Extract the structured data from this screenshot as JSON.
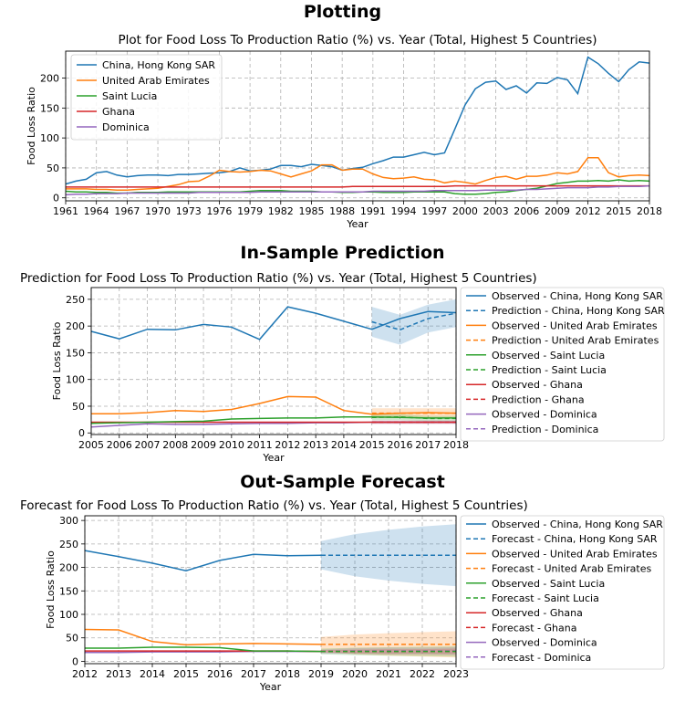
{
  "sections": [
    {
      "heading": "Plotting"
    },
    {
      "heading": "In-Sample Prediction"
    },
    {
      "heading": "Out-Sample Forecast"
    }
  ],
  "colors": {
    "china": "#1f77b4",
    "uae": "#ff7f0e",
    "saint_lucia": "#2ca02c",
    "ghana": "#d62728",
    "dominica": "#9467bd"
  },
  "chart_data": [
    {
      "type": "line",
      "title": "Plot for Food Loss To Production Ratio (%) vs. Year (Total, Highest 5 Countries)",
      "xlabel": "Year",
      "ylabel": "Food Loss Ratio",
      "xlim": [
        1961,
        2018
      ],
      "ylim": [
        -5,
        245
      ],
      "xticks": [
        1961,
        1964,
        1967,
        1970,
        1973,
        1976,
        1979,
        1982,
        1985,
        1988,
        1991,
        1994,
        1997,
        2000,
        2003,
        2006,
        2009,
        2012,
        2015,
        2018
      ],
      "yticks": [
        0,
        50,
        100,
        150,
        200
      ],
      "grid": true,
      "legend_position": "top-left",
      "x": [
        1961,
        1962,
        1963,
        1964,
        1965,
        1966,
        1967,
        1968,
        1969,
        1970,
        1971,
        1972,
        1973,
        1974,
        1975,
        1976,
        1977,
        1978,
        1979,
        1980,
        1981,
        1982,
        1983,
        1984,
        1985,
        1986,
        1987,
        1988,
        1989,
        1990,
        1991,
        1992,
        1993,
        1994,
        1995,
        1996,
        1997,
        1998,
        1999,
        2000,
        2001,
        2002,
        2003,
        2004,
        2005,
        2006,
        2007,
        2008,
        2009,
        2010,
        2011,
        2012,
        2013,
        2014,
        2015,
        2016,
        2017,
        2018
      ],
      "series": [
        {
          "name": "China, Hong Kong SAR",
          "color": "#1f77b4",
          "values": [
            23,
            28,
            31,
            42,
            44,
            38,
            35,
            37,
            38,
            38,
            37,
            39,
            39,
            40,
            41,
            42,
            44,
            50,
            45,
            46,
            48,
            54,
            54,
            52,
            56,
            54,
            52,
            46,
            49,
            51,
            57,
            62,
            68,
            68,
            72,
            76,
            72,
            75,
            115,
            155,
            182,
            193,
            195,
            181,
            187,
            175,
            192,
            191,
            201,
            197,
            174,
            235,
            224,
            208,
            194,
            214,
            227,
            225
          ]
        },
        {
          "name": "United Arab Emirates",
          "color": "#ff7f0e",
          "values": [
            15,
            15,
            15,
            14,
            14,
            13,
            13,
            14,
            15,
            16,
            19,
            22,
            27,
            28,
            36,
            46,
            44,
            43,
            44,
            46,
            45,
            40,
            35,
            40,
            45,
            55,
            55,
            46,
            48,
            48,
            40,
            34,
            32,
            33,
            35,
            31,
            30,
            25,
            28,
            26,
            23,
            29,
            34,
            36,
            31,
            36,
            36,
            38,
            42,
            40,
            44,
            67,
            67,
            42,
            35,
            37,
            38,
            37
          ]
        },
        {
          "name": "Saint Lucia",
          "color": "#2ca02c",
          "values": [
            11,
            10,
            10,
            9,
            9,
            8,
            8,
            9,
            9,
            9,
            10,
            10,
            10,
            10,
            10,
            10,
            10,
            10,
            11,
            12,
            12,
            12,
            11,
            11,
            11,
            10,
            10,
            9,
            9,
            10,
            10,
            9,
            9,
            9,
            10,
            10,
            10,
            10,
            7,
            6,
            6,
            7,
            9,
            10,
            12,
            14,
            16,
            20,
            24,
            26,
            28,
            28,
            29,
            28,
            30,
            28,
            29,
            28
          ]
        },
        {
          "name": "Ghana",
          "color": "#d62728",
          "values": [
            18,
            18,
            18,
            18,
            18,
            18,
            18,
            18,
            18,
            18,
            18,
            18,
            18,
            18,
            18,
            18,
            18,
            18,
            18,
            18,
            18,
            18,
            18,
            18,
            18,
            18,
            18,
            18,
            19,
            19,
            19,
            19,
            19,
            19,
            19,
            19,
            19,
            19,
            20,
            20,
            20,
            20,
            20,
            20,
            20,
            20,
            20,
            20,
            20,
            20,
            20,
            20,
            20,
            20,
            20,
            20,
            20,
            20
          ]
        },
        {
          "name": "Dominica",
          "color": "#9467bd",
          "values": [
            5,
            6,
            6,
            7,
            7,
            7,
            8,
            8,
            8,
            8,
            8,
            8,
            8,
            9,
            9,
            9,
            9,
            9,
            9,
            10,
            10,
            10,
            10,
            10,
            10,
            10,
            10,
            10,
            10,
            10,
            11,
            11,
            11,
            11,
            11,
            11,
            12,
            12,
            12,
            12,
            12,
            13,
            13,
            13,
            13,
            14,
            14,
            15,
            16,
            17,
            17,
            17,
            18,
            18,
            19,
            19,
            19,
            20
          ]
        }
      ]
    },
    {
      "type": "line",
      "title": "Prediction for Food Loss To Production Ratio (%) vs. Year  (Total, Highest 5 Countries)",
      "xlabel": "Year",
      "ylabel": "Food Loss Ratio",
      "xlim": [
        2005,
        2018
      ],
      "ylim": [
        -3,
        272
      ],
      "xticks": [
        2005,
        2006,
        2007,
        2008,
        2009,
        2010,
        2011,
        2012,
        2013,
        2014,
        2015,
        2016,
        2017,
        2018
      ],
      "yticks": [
        0,
        50,
        100,
        150,
        200,
        250
      ],
      "grid": true,
      "legend_position": "outside-right",
      "legend_entries": [
        "Observed - China, Hong Kong SAR",
        "Prediction - China, Hong Kong SAR",
        "Observed - United Arab Emirates",
        "Prediction - United Arab Emirates",
        "Observed - Saint Lucia",
        "Prediction - Saint Lucia",
        "Observed - Ghana",
        "Prediction - Ghana",
        "Observed - Dominica",
        "Prediction - Dominica"
      ],
      "observed_x": [
        2005,
        2006,
        2007,
        2008,
        2009,
        2010,
        2011,
        2012,
        2013,
        2014,
        2015,
        2016,
        2017,
        2018
      ],
      "observed": [
        {
          "country": "China, Hong Kong SAR",
          "color": "#1f77b4",
          "values": [
            190,
            176,
            194,
            193,
            203,
            198,
            175,
            236,
            224,
            209,
            194,
            214,
            227,
            225
          ]
        },
        {
          "country": "United Arab Emirates",
          "color": "#ff7f0e",
          "values": [
            36,
            36,
            38,
            42,
            40,
            44,
            55,
            68,
            67,
            42,
            35,
            37,
            38,
            37
          ]
        },
        {
          "country": "Saint Lucia",
          "color": "#2ca02c",
          "values": [
            18,
            19,
            20,
            21,
            22,
            26,
            27,
            28,
            28,
            30,
            30,
            29,
            28,
            28
          ]
        },
        {
          "country": "Ghana",
          "color": "#d62728",
          "values": [
            20,
            20,
            20,
            20,
            20,
            20,
            20,
            20,
            20,
            20,
            20,
            20,
            20,
            20
          ]
        },
        {
          "country": "Dominica",
          "color": "#9467bd",
          "values": [
            11,
            14,
            17,
            16,
            16,
            17,
            18,
            18,
            19,
            19,
            20,
            20,
            20,
            20
          ]
        }
      ],
      "prediction_x": [
        2015,
        2016,
        2017,
        2018
      ],
      "prediction": [
        {
          "country": "China, Hong Kong SAR",
          "color": "#1f77b4",
          "values": [
            208,
            193,
            214,
            224
          ],
          "lower": [
            180,
            165,
            188,
            198
          ],
          "upper": [
            236,
            221,
            240,
            250
          ]
        },
        {
          "country": "United Arab Emirates",
          "color": "#ff7f0e",
          "values": [
            37,
            37,
            37,
            37
          ],
          "lower": [
            28,
            28,
            28,
            28
          ],
          "upper": [
            46,
            46,
            46,
            46
          ]
        },
        {
          "country": "Saint Lucia",
          "color": "#2ca02c",
          "values": [
            29,
            30,
            27,
            27
          ],
          "lower": [
            24,
            24,
            22,
            22
          ],
          "upper": [
            34,
            35,
            32,
            32
          ]
        },
        {
          "country": "Ghana",
          "color": "#d62728",
          "values": [
            20,
            20,
            20,
            20
          ],
          "lower": [
            17,
            17,
            17,
            17
          ],
          "upper": [
            23,
            23,
            23,
            23
          ]
        },
        {
          "country": "Dominica",
          "color": "#9467bd",
          "values": [
            20,
            20,
            20,
            20
          ],
          "lower": [
            17,
            17,
            17,
            17
          ],
          "upper": [
            23,
            23,
            23,
            23
          ]
        }
      ]
    },
    {
      "type": "line",
      "title": "Forecast for Food Loss To Production Ratio (%) vs. Year (Total, Highest 5 Countries)",
      "xlabel": "Year",
      "ylabel": "Food Loss Ratio",
      "xlim": [
        2012,
        2023
      ],
      "ylim": [
        -5,
        310
      ],
      "xticks": [
        2012,
        2013,
        2014,
        2015,
        2016,
        2017,
        2018,
        2019,
        2020,
        2021,
        2022,
        2023
      ],
      "yticks": [
        0,
        50,
        100,
        150,
        200,
        250,
        300
      ],
      "grid": true,
      "legend_position": "outside-right",
      "legend_entries": [
        "Observed - China, Hong Kong SAR",
        "Forecast - China, Hong Kong SAR",
        "Observed - United Arab Emirates",
        "Forecast - United Arab Emirates",
        "Observed - Saint Lucia",
        "Forecast - Saint Lucia",
        "Observed - Ghana",
        "Forecast - Ghana",
        "Observed - Dominica",
        "Forecast - Dominica"
      ],
      "observed_x": [
        2012,
        2013,
        2014,
        2015,
        2016,
        2017,
        2018,
        2019
      ],
      "observed": [
        {
          "country": "China, Hong Kong SAR",
          "color": "#1f77b4",
          "values": [
            236,
            223,
            209,
            193,
            215,
            228,
            225,
            226
          ]
        },
        {
          "country": "United Arab Emirates",
          "color": "#ff7f0e",
          "values": [
            68,
            67,
            42,
            35,
            37,
            38,
            37,
            36
          ]
        },
        {
          "country": "Saint Lucia",
          "color": "#2ca02c",
          "values": [
            28,
            28,
            30,
            30,
            29,
            22,
            22,
            21
          ]
        },
        {
          "country": "Ghana",
          "color": "#d62728",
          "values": [
            22,
            22,
            22,
            22,
            22,
            22,
            22,
            21
          ]
        },
        {
          "country": "Dominica",
          "color": "#9467bd",
          "values": [
            19,
            19,
            20,
            20,
            20,
            21,
            21,
            21
          ]
        }
      ],
      "forecast_x": [
        2019,
        2020,
        2021,
        2022,
        2023
      ],
      "forecast": [
        {
          "country": "China, Hong Kong SAR",
          "color": "#1f77b4",
          "values": [
            226,
            226,
            226,
            226,
            226
          ],
          "lower": [
            196,
            181,
            172,
            165,
            160
          ],
          "upper": [
            256,
            271,
            280,
            287,
            292
          ]
        },
        {
          "country": "United Arab Emirates",
          "color": "#ff7f0e",
          "values": [
            36,
            36,
            36,
            36,
            36
          ],
          "lower": [
            20,
            15,
            12,
            10,
            8
          ],
          "upper": [
            52,
            57,
            60,
            62,
            64
          ]
        },
        {
          "country": "Saint Lucia",
          "color": "#2ca02c",
          "values": [
            21,
            21,
            21,
            21,
            21
          ],
          "lower": [
            15,
            13,
            12,
            11,
            10
          ],
          "upper": [
            27,
            29,
            30,
            31,
            32
          ]
        },
        {
          "country": "Ghana",
          "color": "#d62728",
          "values": [
            21,
            21,
            21,
            21,
            21
          ],
          "lower": [
            18,
            17,
            16,
            16,
            15
          ],
          "upper": [
            24,
            25,
            26,
            26,
            27
          ]
        },
        {
          "country": "Dominica",
          "color": "#9467bd",
          "values": [
            21,
            22,
            22,
            22,
            22
          ],
          "lower": [
            17,
            16,
            15,
            15,
            14
          ],
          "upper": [
            25,
            28,
            29,
            29,
            30
          ]
        }
      ]
    }
  ]
}
